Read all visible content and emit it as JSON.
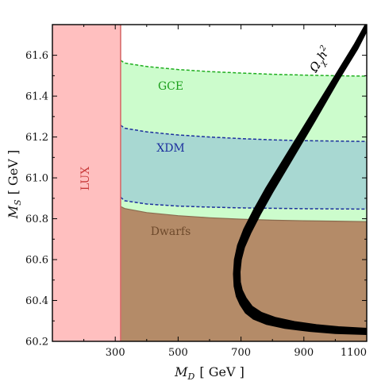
{
  "chart_data": {
    "type": "area",
    "xlim": [
      100,
      1100
    ],
    "ylim": [
      60.2,
      61.75
    ],
    "x_ticks": [
      300,
      500,
      700,
      900,
      1100
    ],
    "y_ticks": [
      60.2,
      60.4,
      60.6,
      60.8,
      61.0,
      61.2,
      61.4,
      61.6
    ],
    "x_tick_labels": [
      "300",
      "500",
      "700",
      "900",
      "1100"
    ],
    "y_tick_labels": [
      "60.2",
      "60.4",
      "60.6",
      "60.8",
      "61.0",
      "61.2",
      "61.4",
      "61.6"
    ],
    "xlabel_main": "M",
    "xlabel_sub": "D",
    "xlabel_unit": "[ GeV ]",
    "ylabel_main": "M",
    "ylabel_sub": "S",
    "ylabel_unit": "[ GeV ]",
    "grid": false,
    "regions": [
      {
        "name": "LUX",
        "color": "#ffbfbf",
        "edge_color": "#d86a6a",
        "label_color": "#c83a3a",
        "x_range": [
          100,
          317
        ]
      },
      {
        "name": "GCE",
        "color": "#ccfccc",
        "edge_color": "#1fae1f",
        "label_color": "#1a9e1a",
        "upper": {
          "x": [
            317,
            330,
            400,
            500,
            600,
            700,
            800,
            900,
            1000,
            1100
          ],
          "y": [
            61.575,
            61.562,
            61.545,
            61.53,
            61.52,
            61.513,
            61.507,
            61.503,
            61.5,
            61.498
          ]
        },
        "lower": {
          "x": [
            317,
            330,
            400,
            500,
            600,
            700,
            800,
            900,
            1000,
            1100
          ],
          "y": [
            60.86,
            60.85,
            60.83,
            60.815,
            60.805,
            60.798,
            60.793,
            60.79,
            60.788,
            60.786
          ]
        }
      },
      {
        "name": "XDM",
        "color": "#a8d8d2",
        "edge_color": "#1c2f9e",
        "label_color": "#1c2f9e",
        "upper": {
          "x": [
            317,
            330,
            400,
            500,
            600,
            700,
            800,
            900,
            1000,
            1100
          ],
          "y": [
            61.258,
            61.243,
            61.225,
            61.21,
            61.2,
            61.192,
            61.186,
            61.182,
            61.18,
            61.178
          ]
        },
        "lower": {
          "x": [
            317,
            330,
            400,
            500,
            600,
            700,
            800,
            900,
            1000,
            1100
          ],
          "y": [
            60.905,
            60.888,
            60.872,
            60.862,
            60.857,
            60.853,
            60.851,
            60.849,
            60.848,
            60.847
          ]
        }
      },
      {
        "name": "Dwarfs",
        "color": "#b48b68",
        "edge_color": "#8a6a4e",
        "label_color": "#6e4a2c",
        "upper": {
          "x": [
            317,
            330,
            400,
            500,
            600,
            700,
            800,
            900,
            1000,
            1100
          ],
          "y": [
            60.86,
            60.85,
            60.83,
            60.815,
            60.805,
            60.798,
            60.793,
            60.79,
            60.788,
            60.786
          ]
        }
      }
    ],
    "relic_curve": {
      "label_main": "Ω",
      "label_sub": "χ",
      "label_rest": "h",
      "label_sup": "2",
      "color": "#000000",
      "outer": {
        "x": [
          1100,
          1060,
          1000,
          920,
          840,
          780,
          740,
          710,
          690,
          680,
          677,
          679,
          686,
          698,
          715,
          740,
          780,
          840,
          920,
          1000,
          1100
        ],
        "y": [
          61.76,
          61.65,
          61.5,
          61.3,
          61.1,
          60.95,
          60.84,
          60.75,
          60.67,
          60.6,
          60.53,
          60.47,
          60.42,
          60.38,
          60.34,
          60.31,
          60.285,
          60.265,
          60.25,
          60.24,
          60.235
        ]
      },
      "inner": {
        "x": [
          1100,
          1070,
          1010,
          935,
          858,
          800,
          760,
          730,
          710,
          700,
          696,
          697,
          703,
          716,
          735,
          765,
          810,
          870,
          940,
          1010,
          1100
        ],
        "y": [
          61.72,
          61.63,
          61.48,
          61.28,
          61.08,
          60.93,
          60.82,
          60.73,
          60.66,
          60.6,
          60.54,
          60.49,
          60.45,
          60.41,
          60.37,
          60.34,
          60.315,
          60.295,
          60.28,
          60.27,
          60.262
        ]
      }
    }
  }
}
